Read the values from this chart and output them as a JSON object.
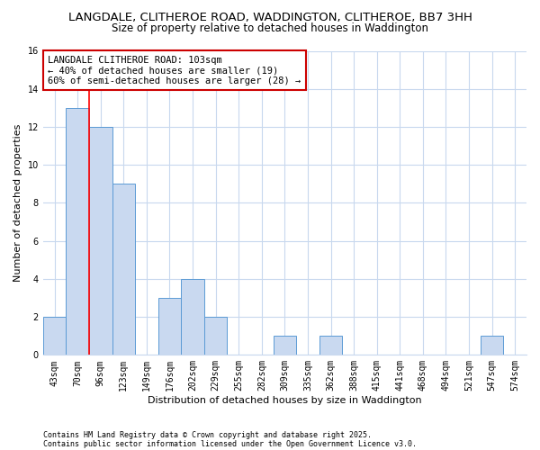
{
  "title1": "LANGDALE, CLITHEROE ROAD, WADDINGTON, CLITHEROE, BB7 3HH",
  "title2": "Size of property relative to detached houses in Waddington",
  "xlabel": "Distribution of detached houses by size in Waddington",
  "ylabel": "Number of detached properties",
  "categories": [
    "43sqm",
    "70sqm",
    "96sqm",
    "123sqm",
    "149sqm",
    "176sqm",
    "202sqm",
    "229sqm",
    "255sqm",
    "282sqm",
    "309sqm",
    "335sqm",
    "362sqm",
    "388sqm",
    "415sqm",
    "441sqm",
    "468sqm",
    "494sqm",
    "521sqm",
    "547sqm",
    "574sqm"
  ],
  "values": [
    2,
    13,
    12,
    9,
    0,
    3,
    4,
    2,
    0,
    0,
    1,
    0,
    1,
    0,
    0,
    0,
    0,
    0,
    0,
    1,
    0
  ],
  "bar_color": "#c9d9f0",
  "bar_edge_color": "#5b9bd5",
  "grid_color": "#c8d8ee",
  "annotation_text": "LANGDALE CLITHEROE ROAD: 103sqm\n← 40% of detached houses are smaller (19)\n60% of semi-detached houses are larger (28) →",
  "annotation_box_color": "#ffffff",
  "annotation_box_edge": "#cc0000",
  "ylim": [
    0,
    16
  ],
  "yticks": [
    0,
    2,
    4,
    6,
    8,
    10,
    12,
    14,
    16
  ],
  "footnote1": "Contains HM Land Registry data © Crown copyright and database right 2025.",
  "footnote2": "Contains public sector information licensed under the Open Government Licence v3.0.",
  "bg_color": "#ffffff",
  "plot_bg_color": "#ffffff",
  "title1_fontsize": 9.5,
  "title2_fontsize": 8.5,
  "xlabel_fontsize": 8,
  "ylabel_fontsize": 8,
  "tick_fontsize": 7,
  "annotation_fontsize": 7.5,
  "footnote_fontsize": 6
}
